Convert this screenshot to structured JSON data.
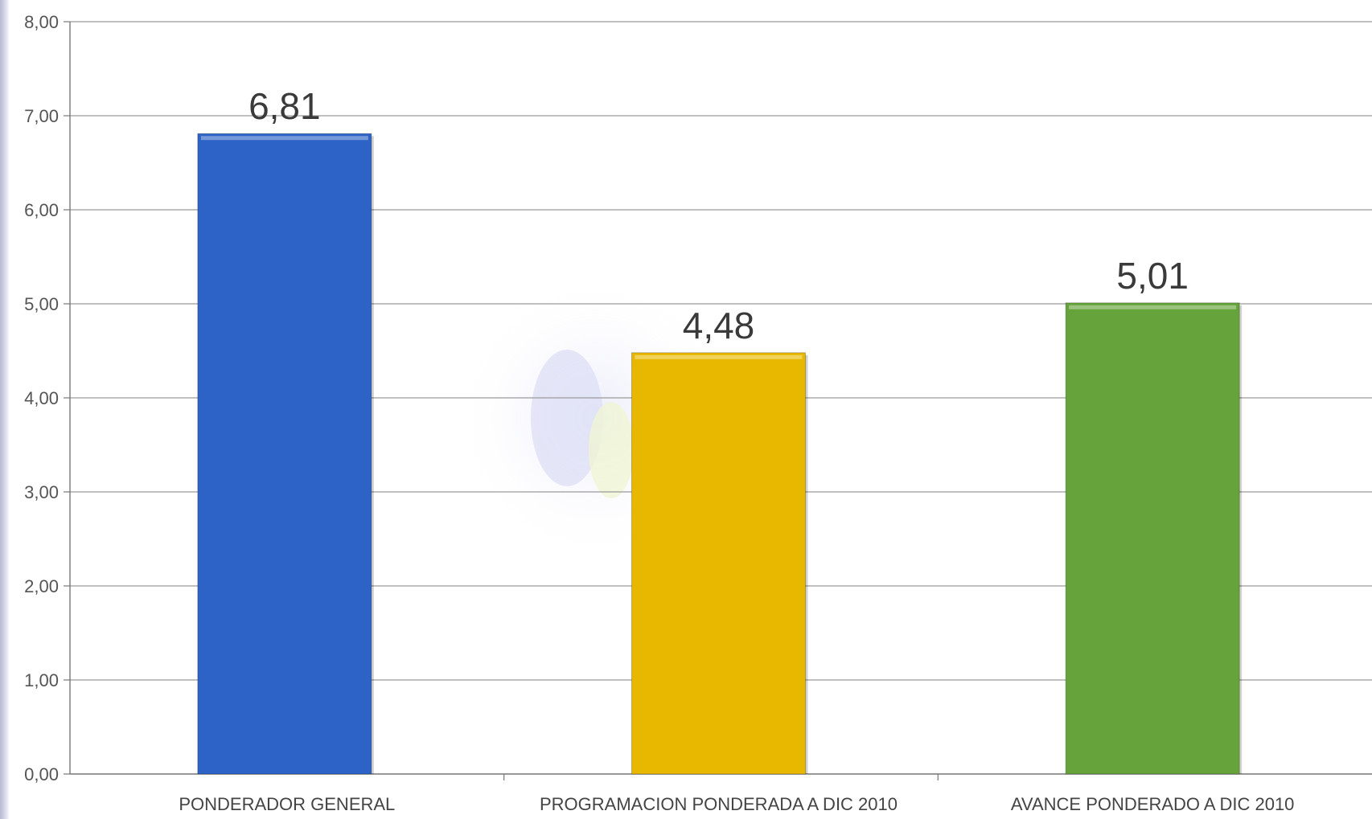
{
  "chart_data": {
    "type": "bar",
    "title": "",
    "xlabel": "",
    "ylabel": "",
    "ylim": [
      0,
      8
    ],
    "ytick_step": 1,
    "ytick_labels": [
      "0,00",
      "1,00",
      "2,00",
      "3,00",
      "4,00",
      "5,00",
      "6,00",
      "7,00",
      "8,00"
    ],
    "grid": true,
    "legend": "none",
    "categories": [
      "PONDERADOR GENERAL",
      "PROGRAMACION PONDERADA A DIC 2010",
      "AVANCE PONDERADO A DIC 2010"
    ],
    "values": [
      6.81,
      4.48,
      5.01
    ],
    "data_labels": [
      "6,81",
      "4,48",
      "5,01"
    ],
    "colors": [
      "#2d63c6",
      "#e8b800",
      "#66a33b"
    ]
  }
}
